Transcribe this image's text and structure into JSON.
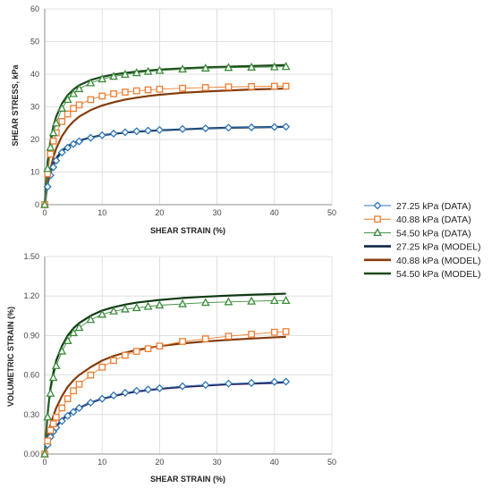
{
  "chart_data": [
    {
      "type": "line",
      "xlabel": "SHEAR STRAIN (%)",
      "ylabel": "SHEAR STRESS, kPa",
      "xlim": [
        0,
        50
      ],
      "ylim": [
        0,
        60
      ],
      "xticks": [
        "0",
        "10",
        "20",
        "30",
        "40",
        "50"
      ],
      "yticks": [
        "0",
        "10",
        "20",
        "30",
        "40",
        "50",
        "60"
      ],
      "grid": true,
      "x": [
        0,
        0.5,
        1,
        1.5,
        2,
        3,
        4,
        5,
        6,
        8,
        10,
        12,
        14,
        16,
        18,
        20,
        24,
        28,
        32,
        36,
        40,
        42
      ],
      "series": [
        {
          "name": "27.25 kPa (DATA)",
          "kind": "data",
          "marker": "diamond",
          "color": "#2e75b6",
          "values": [
            0,
            5.5,
            9,
            11.5,
            13.5,
            16,
            17.5,
            18.6,
            19.4,
            20.5,
            21.3,
            21.8,
            22.2,
            22.5,
            22.7,
            22.9,
            23.2,
            23.4,
            23.6,
            23.7,
            23.8,
            23.9
          ]
        },
        {
          "name": "40.88 kPa (DATA)",
          "kind": "data",
          "marker": "square",
          "color": "#ed7d31",
          "values": [
            0,
            9.5,
            15.5,
            19.5,
            22,
            25.5,
            27.8,
            29.5,
            30.6,
            32.2,
            33.3,
            34,
            34.5,
            34.9,
            35.2,
            35.4,
            35.7,
            35.9,
            36.1,
            36.2,
            36.3,
            36.3
          ]
        },
        {
          "name": "54.50 kPa (DATA)",
          "kind": "data",
          "marker": "triangle",
          "color": "#3a8c3a",
          "values": [
            0,
            11,
            17.5,
            22,
            25,
            29.5,
            32.2,
            34,
            35.5,
            37.3,
            38.5,
            39.3,
            39.9,
            40.4,
            40.8,
            41.1,
            41.5,
            41.8,
            42,
            42.1,
            42.2,
            42.3
          ]
        },
        {
          "name": "27.25 kPa (MODEL)",
          "kind": "model",
          "color": "#0f2745",
          "values": [
            0,
            6.8,
            10.3,
            12.6,
            14.3,
            16.5,
            17.9,
            18.9,
            19.6,
            20.6,
            21.3,
            21.7,
            22.1,
            22.4,
            22.6,
            22.8,
            23.1,
            23.4,
            23.6,
            23.7,
            23.8,
            23.9
          ]
        },
        {
          "name": "40.88 kPa (MODEL)",
          "kind": "model",
          "color": "#843c0c",
          "values": [
            0,
            6.5,
            11,
            14.5,
            17.2,
            21,
            23.6,
            25.5,
            27,
            29,
            30.4,
            31.4,
            32.2,
            32.8,
            33.3,
            33.7,
            34.3,
            34.7,
            35,
            35.3,
            35.5,
            35.6
          ]
        },
        {
          "name": "54.50 kPa (MODEL)",
          "kind": "model",
          "color": "#1d4a1d",
          "values": [
            0,
            13,
            19.5,
            24,
            27,
            31,
            33.6,
            35.3,
            36.6,
            38.2,
            39.2,
            39.9,
            40.4,
            40.8,
            41.1,
            41.4,
            41.8,
            42.1,
            42.3,
            42.5,
            42.7,
            42.8
          ]
        }
      ]
    },
    {
      "type": "line",
      "xlabel": "SHEAR STRAIN (%)",
      "ylabel": "VOLUMETRIC STRAIN (%)",
      "xlim": [
        0,
        50
      ],
      "ylim": [
        0,
        1.5
      ],
      "xticks": [
        "0",
        "10",
        "20",
        "30",
        "40",
        "50"
      ],
      "yticks": [
        "0.00",
        "0.30",
        "0.60",
        "0.90",
        "1.20",
        "1.50"
      ],
      "grid": true,
      "x": [
        0,
        0.5,
        1,
        1.5,
        2,
        3,
        4,
        5,
        6,
        8,
        10,
        12,
        14,
        16,
        18,
        20,
        24,
        28,
        32,
        36,
        40,
        42
      ],
      "series": [
        {
          "name": "27.25 kPa (DATA)",
          "kind": "data",
          "marker": "diamond",
          "color": "#2e75b6",
          "values": [
            0,
            0.07,
            0.13,
            0.17,
            0.2,
            0.25,
            0.29,
            0.32,
            0.35,
            0.39,
            0.42,
            0.445,
            0.465,
            0.48,
            0.49,
            0.5,
            0.515,
            0.525,
            0.535,
            0.54,
            0.548,
            0.55
          ]
        },
        {
          "name": "40.88 kPa (DATA)",
          "kind": "data",
          "marker": "square",
          "color": "#ed7d31",
          "values": [
            0,
            0.1,
            0.18,
            0.23,
            0.28,
            0.35,
            0.42,
            0.48,
            0.53,
            0.6,
            0.66,
            0.71,
            0.75,
            0.78,
            0.8,
            0.82,
            0.855,
            0.875,
            0.895,
            0.91,
            0.925,
            0.93
          ]
        },
        {
          "name": "54.50 kPa (DATA)",
          "kind": "data",
          "marker": "triangle",
          "color": "#3a8c3a",
          "values": [
            0,
            0.28,
            0.46,
            0.58,
            0.67,
            0.78,
            0.86,
            0.92,
            0.96,
            1.02,
            1.06,
            1.085,
            1.1,
            1.11,
            1.12,
            1.13,
            1.14,
            1.15,
            1.155,
            1.16,
            1.165,
            1.165
          ]
        },
        {
          "name": "27.25 kPa (MODEL)",
          "kind": "model",
          "color": "#2a1e5c",
          "values": [
            0,
            0.08,
            0.14,
            0.18,
            0.21,
            0.26,
            0.3,
            0.33,
            0.35,
            0.39,
            0.42,
            0.44,
            0.46,
            0.475,
            0.485,
            0.495,
            0.51,
            0.52,
            0.53,
            0.535,
            0.54,
            0.545
          ]
        },
        {
          "name": "40.88 kPa (MODEL)",
          "kind": "model",
          "color": "#843c0c",
          "values": [
            0,
            0.13,
            0.22,
            0.29,
            0.35,
            0.44,
            0.51,
            0.56,
            0.6,
            0.66,
            0.71,
            0.745,
            0.77,
            0.79,
            0.805,
            0.82,
            0.84,
            0.855,
            0.867,
            0.877,
            0.886,
            0.89
          ]
        },
        {
          "name": "54.50 kPa (MODEL)",
          "kind": "model",
          "color": "#0f3a14",
          "values": [
            0,
            0.3,
            0.5,
            0.62,
            0.71,
            0.82,
            0.9,
            0.955,
            0.995,
            1.05,
            1.09,
            1.115,
            1.135,
            1.15,
            1.16,
            1.17,
            1.185,
            1.195,
            1.203,
            1.21,
            1.215,
            1.218
          ]
        }
      ]
    }
  ],
  "legend": {
    "placement": "right",
    "items": [
      {
        "label": "27.25 kPa (DATA)",
        "kind": "data",
        "marker": "diamond",
        "color": "#2e75b6"
      },
      {
        "label": "40.88 kPa (DATA)",
        "kind": "data",
        "marker": "square",
        "color": "#ed7d31"
      },
      {
        "label": "54.50 kPa (DATA)",
        "kind": "data",
        "marker": "triangle",
        "color": "#3a8c3a"
      },
      {
        "label": "27.25 kPa (MODEL)",
        "kind": "model",
        "color": "#0f2745"
      },
      {
        "label": "40.88 kPa (MODEL)",
        "kind": "model",
        "color": "#843c0c"
      },
      {
        "label": "54.50 kPa (MODEL)",
        "kind": "model",
        "color": "#1d4a1d"
      }
    ]
  }
}
